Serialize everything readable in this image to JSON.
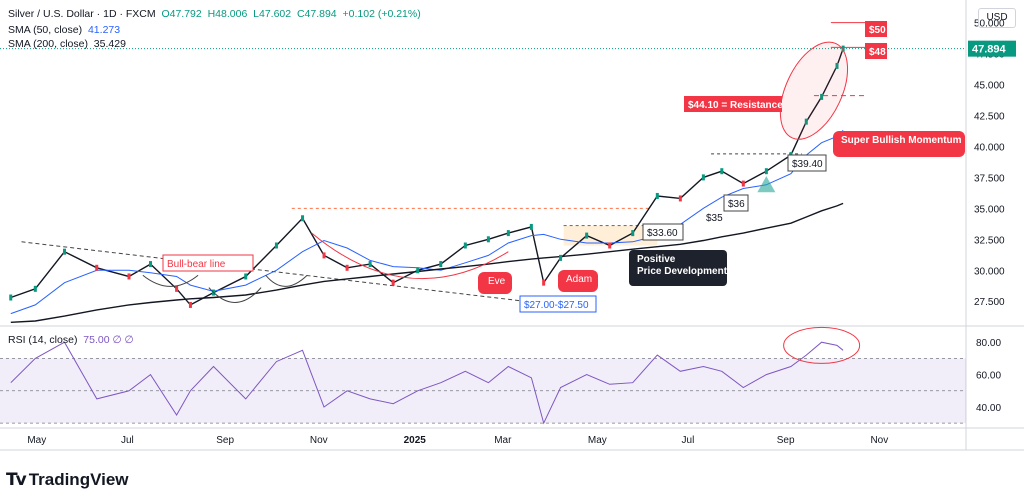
{
  "header": {
    "symbol": "Silver / U.S. Dollar · 1D · FXCM",
    "open": "O47.792",
    "high": "H48.006",
    "low": "L47.602",
    "close": "C47.894",
    "change": "+0.102 (+0.21%)",
    "sma50_label": "SMA (50, close)",
    "sma50_value": "41.273",
    "sma200_label": "SMA (200, close)",
    "sma200_value": "35.429",
    "rsi_label": "RSI (14, close)",
    "rsi_value": "75.00 ∅ ∅",
    "currency": "USD"
  },
  "brand": {
    "name": "TradingView"
  },
  "colors": {
    "up": "#089981",
    "down": "#f23645",
    "sma50": "#2962ff",
    "sma200": "#131722",
    "rsi": "#7e57c2",
    "annotation_red": "#f23645",
    "annotation_dark": "#1e222d"
  },
  "chart_data": {
    "type": "line",
    "title": "Silver / U.S. Dollar · 1D · FXCM",
    "price_axis": {
      "ticks": [
        "50.000",
        "47.500",
        "45.000",
        "42.500",
        "40.000",
        "37.500",
        "35.000",
        "32.500",
        "30.000",
        "27.500"
      ],
      "ylim": [
        25.5,
        51.5
      ],
      "last_price": "47.894"
    },
    "rsi_axis": {
      "ticks": [
        "80.00",
        "60.00",
        "40.00"
      ],
      "ylim": [
        27,
        90
      ]
    },
    "x_axis": {
      "ticks": [
        "May",
        "Jul",
        "Sep",
        "Nov",
        "2025",
        "Mar",
        "May",
        "Jul",
        "Sep",
        "Nov"
      ]
    },
    "x": [
      "2024-04-15",
      "2024-05-01",
      "2024-05-20",
      "2024-06-10",
      "2024-07-01",
      "2024-07-15",
      "2024-08-01",
      "2024-08-10",
      "2024-08-25",
      "2024-09-15",
      "2024-10-05",
      "2024-10-22",
      "2024-11-05",
      "2024-11-20",
      "2024-12-05",
      "2024-12-20",
      "2025-01-05",
      "2025-01-20",
      "2025-02-05",
      "2025-02-20",
      "2025-03-05",
      "2025-03-20",
      "2025-03-28",
      "2025-04-08",
      "2025-04-25",
      "2025-05-10",
      "2025-05-25",
      "2025-06-10",
      "2025-06-25",
      "2025-07-10",
      "2025-07-22",
      "2025-08-05",
      "2025-08-20",
      "2025-09-05",
      "2025-09-15",
      "2025-09-25",
      "2025-10-05",
      "2025-10-09"
    ],
    "series": [
      {
        "name": "Silver / U.S. Dollar",
        "values": [
          27.8,
          28.5,
          31.5,
          30.2,
          29.5,
          30.5,
          28.5,
          27.2,
          28.2,
          29.5,
          32.0,
          34.2,
          31.2,
          30.2,
          30.5,
          29.0,
          30.0,
          30.5,
          32.0,
          32.5,
          33.0,
          33.5,
          29.0,
          31.0,
          32.8,
          32.0,
          33.0,
          36.0,
          35.8,
          37.5,
          38.0,
          37.0,
          38.0,
          39.3,
          42.0,
          44.0,
          46.5,
          47.9
        ]
      },
      {
        "name": "SMA (50, close)",
        "values": [
          26.5,
          27.2,
          29.0,
          30.0,
          30.0,
          29.8,
          29.5,
          28.8,
          28.3,
          28.8,
          30.0,
          31.5,
          32.4,
          31.8,
          30.8,
          30.3,
          30.2,
          30.0,
          30.6,
          31.2,
          32.2,
          32.8,
          32.9,
          32.5,
          32.2,
          32.2,
          32.3,
          32.8,
          33.7,
          35.0,
          35.9,
          36.6,
          36.9,
          37.8,
          39.3,
          40.3,
          40.8,
          41.3
        ]
      },
      {
        "name": "SMA (200, close)",
        "values": [
          25.8,
          25.9,
          26.3,
          26.8,
          27.2,
          27.4,
          27.6,
          27.7,
          27.8,
          28.0,
          28.4,
          28.8,
          29.1,
          29.3,
          29.5,
          29.7,
          29.9,
          30.1,
          30.3,
          30.5,
          30.7,
          30.9,
          31.0,
          31.1,
          31.3,
          31.5,
          31.7,
          31.9,
          32.1,
          32.4,
          32.7,
          33.0,
          33.4,
          33.8,
          34.3,
          34.8,
          35.2,
          35.4
        ]
      },
      {
        "name": "RSI (14, close)",
        "values": [
          55,
          70,
          80,
          45,
          50,
          60,
          35,
          50,
          65,
          45,
          68,
          75,
          40,
          50,
          45,
          42,
          50,
          55,
          62,
          55,
          65,
          58,
          30,
          52,
          60,
          54,
          55,
          72,
          62,
          65,
          62,
          52,
          60,
          65,
          72,
          80,
          78,
          75
        ]
      }
    ],
    "annotations": [
      {
        "text": "$50",
        "value": 50.0
      },
      {
        "text": "$48",
        "value": 48.0
      },
      {
        "text": "$44.10 = Resistance",
        "value": 44.1
      },
      {
        "text": "Super Bullish Momentum"
      },
      {
        "text": "$39.40",
        "value": 39.4
      },
      {
        "text": "$36",
        "value": 36.0
      },
      {
        "text": "$35",
        "value": 35.0
      },
      {
        "text": "$33.60",
        "value": 33.6
      },
      {
        "text": "Bull-bear line"
      },
      {
        "text": "Eve"
      },
      {
        "text": "Adam"
      },
      {
        "text": "$27.00-$27.50"
      },
      {
        "text": "Positive Price Development"
      }
    ],
    "grid": false,
    "legend": "top-left"
  }
}
